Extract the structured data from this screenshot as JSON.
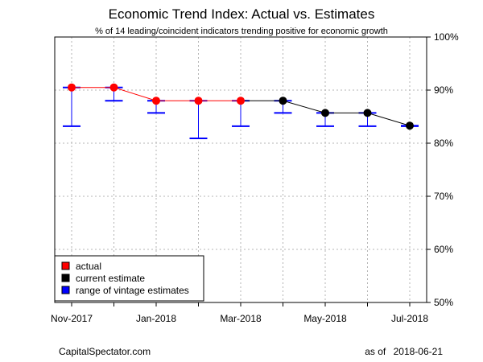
{
  "chart_data": {
    "type": "line",
    "title": "Economic Trend Index: Actual vs. Estimates",
    "subtitle": "% of 14 leading/coincident indicators trending positive for economic growth",
    "x": [
      "2017-11",
      "2017-12",
      "2018-01",
      "2018-02",
      "2018-03",
      "2018-04",
      "2018-05",
      "2018-06",
      "2018-07"
    ],
    "x_tick_labels": [
      "Nov-2017",
      "Jan-2018",
      "Mar-2018",
      "May-2018",
      "Jul-2018"
    ],
    "x_tick_months": [
      "2017-11",
      "2018-01",
      "2018-03",
      "2018-05",
      "2018-07"
    ],
    "y_tick_labels": [
      "50%",
      "60%",
      "70%",
      "80%",
      "90%",
      "100%"
    ],
    "y_tick_values": [
      50,
      60,
      70,
      80,
      90,
      100
    ],
    "ylim": [
      50,
      100
    ],
    "y_axis_side": "right",
    "grid": true,
    "series": [
      {
        "name": "actual",
        "color": "#ff0000",
        "x": [
          "2017-11",
          "2017-12",
          "2018-01",
          "2018-02",
          "2018-03"
        ],
        "values": [
          90.5,
          90.5,
          88.0,
          88.0,
          88.0
        ]
      },
      {
        "name": "current estimate",
        "color": "#000000",
        "x": [
          "2018-04",
          "2018-05",
          "2018-06",
          "2018-07"
        ],
        "values": [
          88.0,
          85.7,
          85.7,
          83.3
        ]
      },
      {
        "name": "range of vintage estimates",
        "color": "#0000ff",
        "type": "errorbar",
        "x": [
          "2017-11",
          "2017-12",
          "2018-01",
          "2018-02",
          "2018-03",
          "2018-04",
          "2018-05",
          "2018-06",
          "2018-07"
        ],
        "low": [
          83.2,
          88.0,
          85.7,
          80.9,
          83.2,
          85.7,
          83.2,
          83.2,
          83.2
        ],
        "high": [
          90.5,
          90.5,
          88.0,
          88.0,
          88.0,
          88.0,
          85.7,
          85.7,
          83.3
        ]
      }
    ],
    "legend": {
      "placement": "bottom-left",
      "entries": [
        {
          "label": "actual",
          "color": "#ff0000"
        },
        {
          "label": "current estimate",
          "color": "#000000"
        },
        {
          "label": "range of vintage estimates",
          "color": "#0000ff"
        }
      ]
    }
  },
  "footer": {
    "source": "CapitalSpectator.com",
    "asof_label": "as of",
    "asof_date": "2018-06-21"
  }
}
